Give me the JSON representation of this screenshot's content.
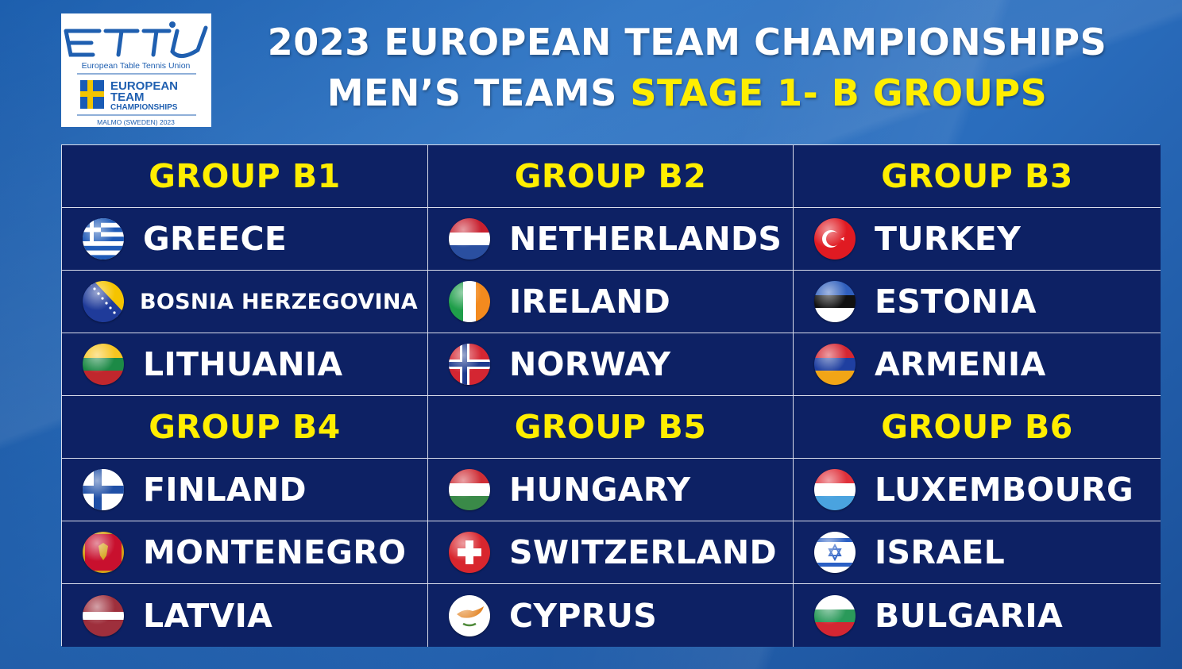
{
  "logo": {
    "mark": "ETTU",
    "org": "European Table Tennis Union",
    "event_line1": "EUROPEAN",
    "event_line2": "TEAM",
    "event_line3": "CHAMPIONSHIPS",
    "location": "MALMO (SWEDEN) 2023"
  },
  "title": {
    "line1": "2023 EUROPEAN TEAM CHAMPIONSHIPS",
    "line2_prefix": "MEN’S TEAMS ",
    "line2_highlight": "STAGE 1- B GROUPS"
  },
  "colors": {
    "highlight": "#ffee00",
    "table_bg": "#0d2164",
    "grid_line": "#d8dcea"
  },
  "groups": [
    {
      "name": "GROUP B1",
      "teams": [
        {
          "name": "GREECE",
          "flag": "greece-flag-icon"
        },
        {
          "name": "BOSNIA HERZEGOVINA",
          "flag": "bosnia-flag-icon"
        },
        {
          "name": "LITHUANIA",
          "flag": "lithuania-flag-icon"
        }
      ]
    },
    {
      "name": "GROUP B2",
      "teams": [
        {
          "name": "NETHERLANDS",
          "flag": "netherlands-flag-icon"
        },
        {
          "name": "IRELAND",
          "flag": "ireland-flag-icon"
        },
        {
          "name": "NORWAY",
          "flag": "norway-flag-icon"
        }
      ]
    },
    {
      "name": "GROUP B3",
      "teams": [
        {
          "name": "TURKEY",
          "flag": "turkey-flag-icon"
        },
        {
          "name": "ESTONIA",
          "flag": "estonia-flag-icon"
        },
        {
          "name": "ARMENIA",
          "flag": "armenia-flag-icon"
        }
      ]
    },
    {
      "name": "GROUP B4",
      "teams": [
        {
          "name": "FINLAND",
          "flag": "finland-flag-icon"
        },
        {
          "name": "MONTENEGRO",
          "flag": "montenegro-flag-icon"
        },
        {
          "name": "LATVIA",
          "flag": "latvia-flag-icon"
        }
      ]
    },
    {
      "name": "GROUP B5",
      "teams": [
        {
          "name": "HUNGARY",
          "flag": "hungary-flag-icon"
        },
        {
          "name": "SWITZERLAND",
          "flag": "switzerland-flag-icon"
        },
        {
          "name": "CYPRUS",
          "flag": "cyprus-flag-icon"
        }
      ]
    },
    {
      "name": "GROUP B6",
      "teams": [
        {
          "name": "LUXEMBOURG",
          "flag": "luxembourg-flag-icon"
        },
        {
          "name": "ISRAEL",
          "flag": "israel-flag-icon"
        },
        {
          "name": "BULGARIA",
          "flag": "bulgaria-flag-icon"
        }
      ]
    }
  ]
}
